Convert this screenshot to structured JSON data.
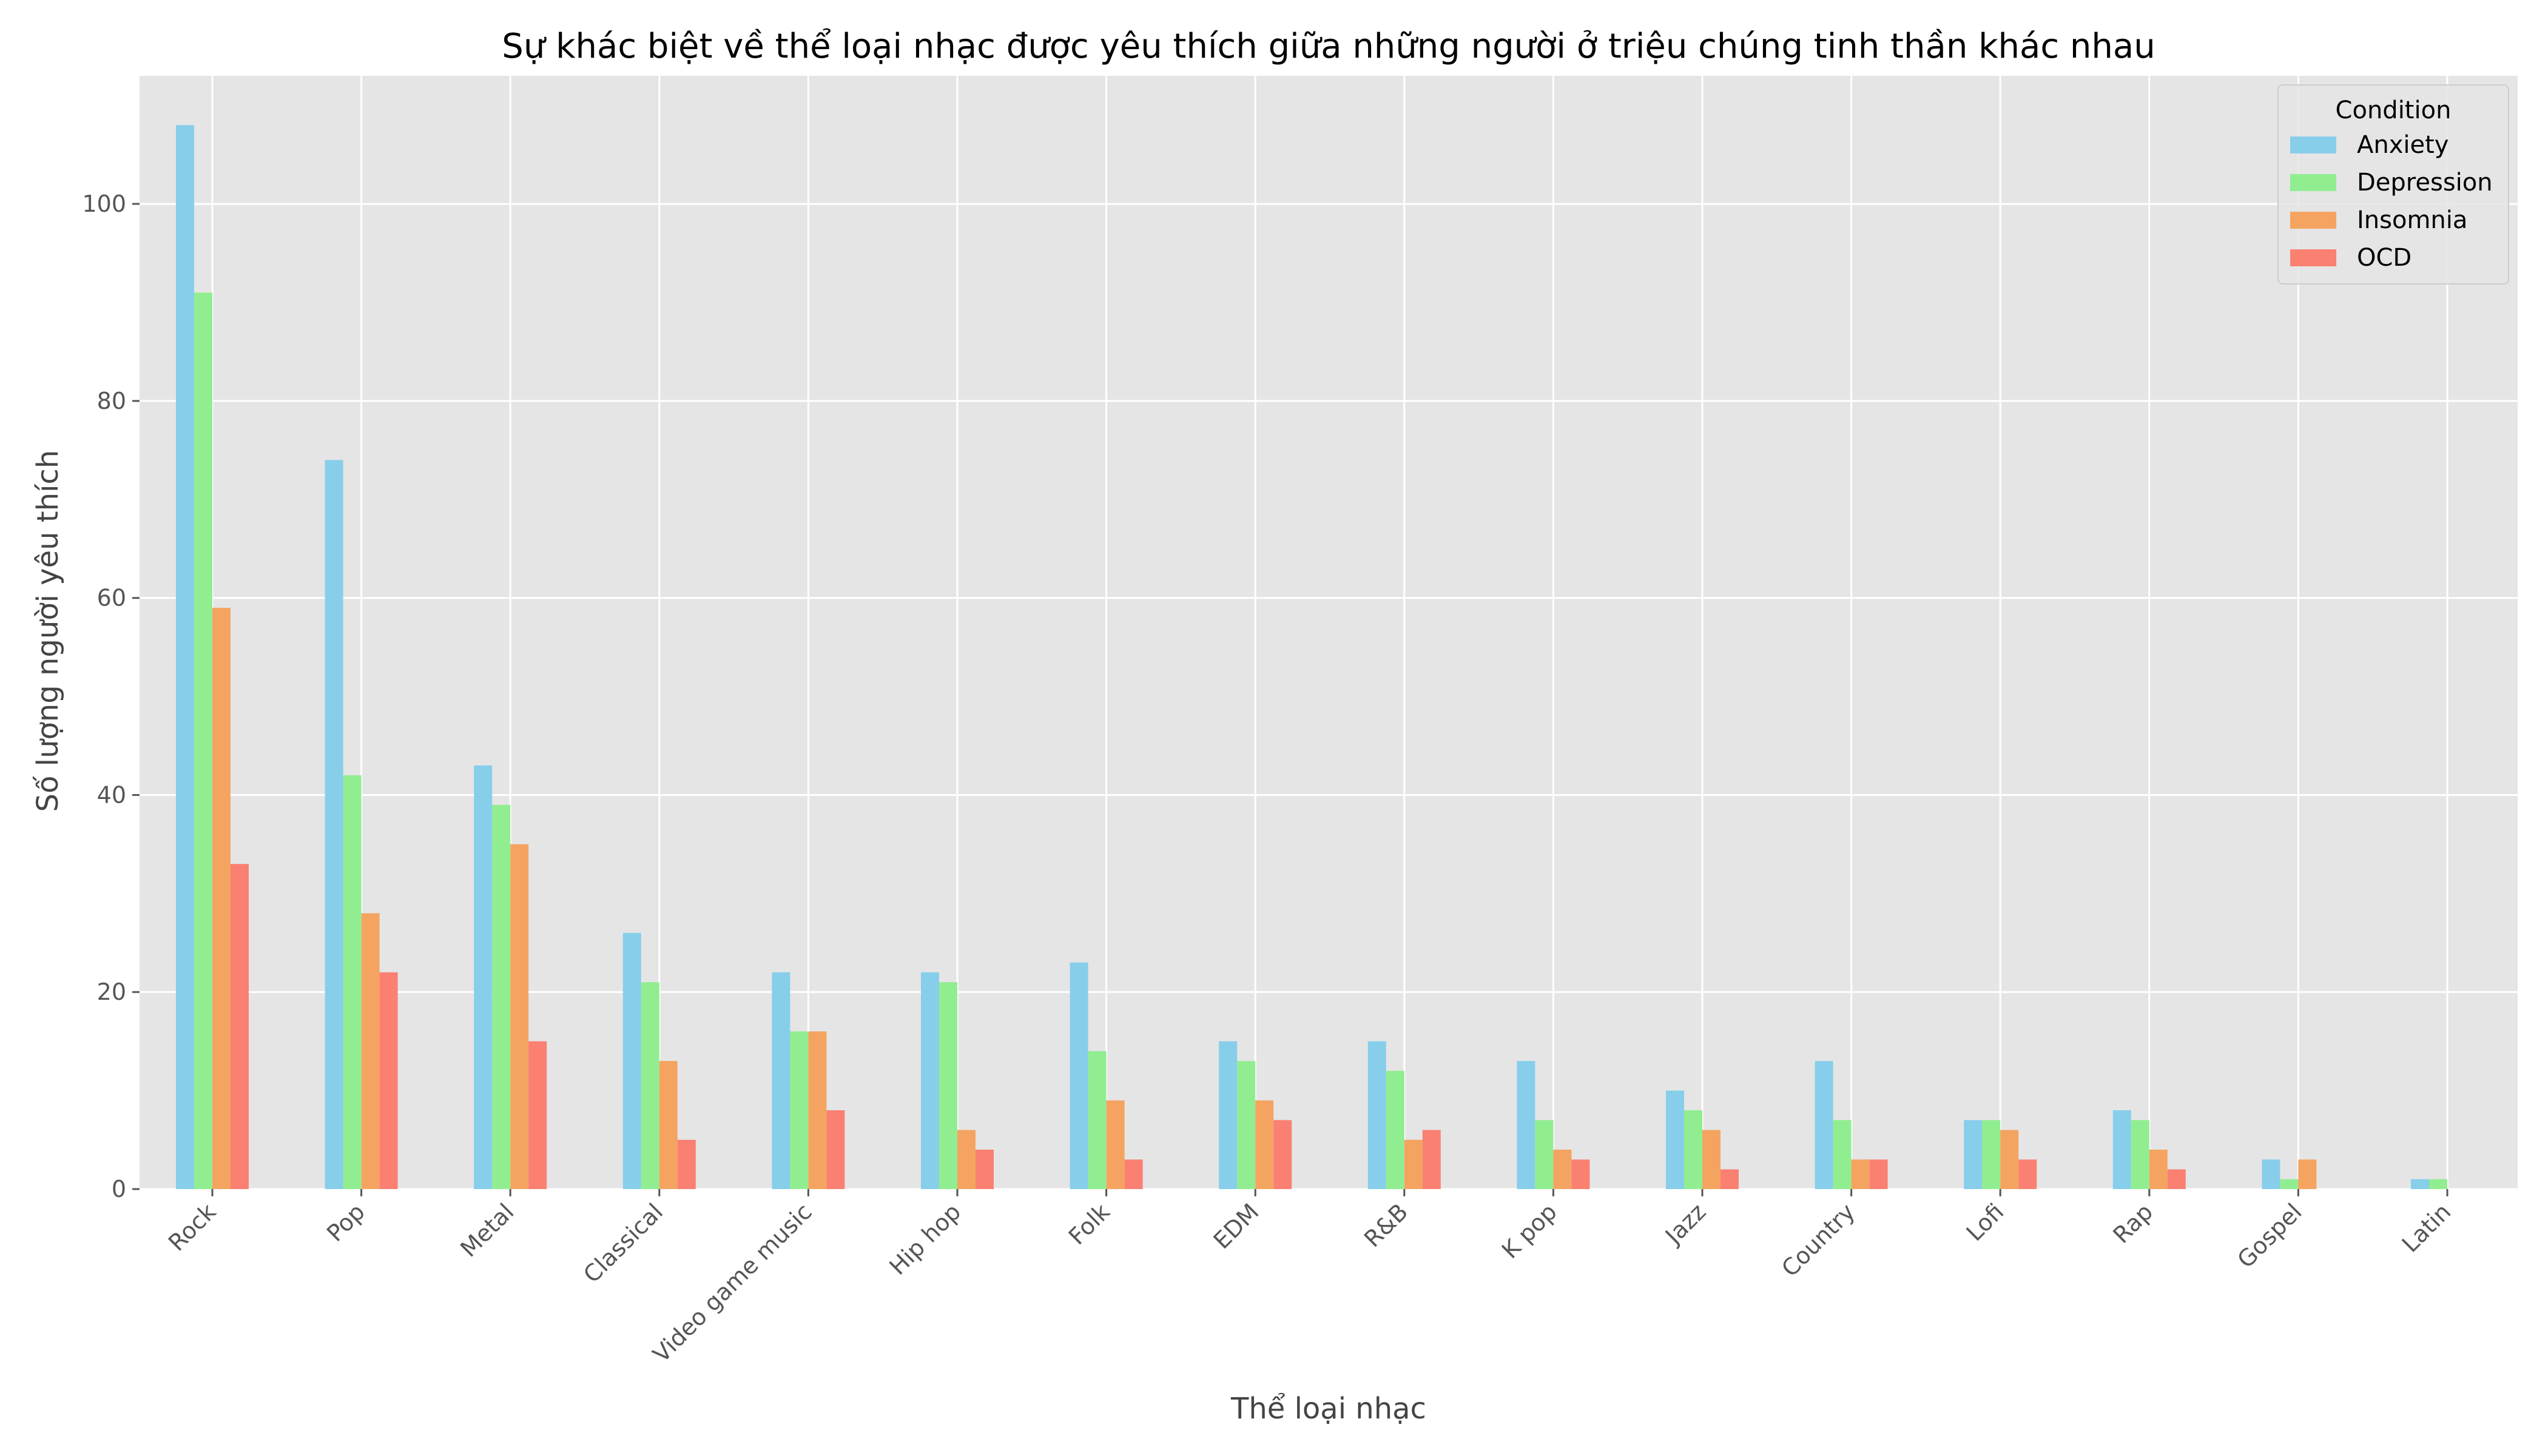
{
  "chart_data": {
    "type": "bar",
    "title": "Sự khác biệt về thể loại nhạc được yêu thích giữa những người ở triệu chúng tinh thần khác nhau",
    "xlabel": "Thể loại nhạc",
    "ylabel": "Số lượng người yêu thích",
    "ylim": [
      0,
      113
    ],
    "yticks": [
      0,
      20,
      40,
      60,
      80,
      100
    ],
    "grid": true,
    "legend": {
      "title": "Condition",
      "position": "top-right"
    },
    "categories": [
      "Rock",
      "Pop",
      "Metal",
      "Classical",
      "Video game music",
      "Hip hop",
      "Folk",
      "EDM",
      "R&B",
      "K pop",
      "Jazz",
      "Country",
      "Lofi",
      "Rap",
      "Gospel",
      "Latin"
    ],
    "series": [
      {
        "name": "Anxiety",
        "color": "#87CEEB",
        "values": [
          108,
          74,
          43,
          26,
          22,
          22,
          23,
          15,
          15,
          13,
          10,
          13,
          7,
          8,
          3,
          1
        ]
      },
      {
        "name": "Depression",
        "color": "#90EE90",
        "values": [
          91,
          42,
          39,
          21,
          16,
          21,
          14,
          13,
          12,
          7,
          8,
          7,
          7,
          7,
          1,
          1
        ]
      },
      {
        "name": "Insomnia",
        "color": "#F4A460",
        "values": [
          59,
          28,
          35,
          13,
          16,
          6,
          9,
          9,
          5,
          4,
          6,
          3,
          6,
          4,
          3,
          0
        ]
      },
      {
        "name": "OCD",
        "color": "#FA8072",
        "values": [
          33,
          22,
          15,
          5,
          8,
          4,
          3,
          7,
          6,
          3,
          2,
          3,
          3,
          2,
          0,
          0
        ]
      }
    ]
  }
}
